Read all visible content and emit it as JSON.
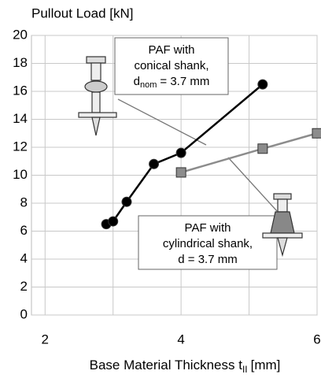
{
  "chart_data": {
    "type": "line",
    "title": "Pullout Load [kN]",
    "x_label": {
      "main": "Base Material Thickness t",
      "sub": "II",
      "unit": "[mm]"
    },
    "xlim": [
      1.8,
      6
    ],
    "xticks": [
      2,
      4,
      6
    ],
    "x_minor_grid": [
      3,
      5
    ],
    "ylim": [
      0,
      20
    ],
    "yticks": [
      0,
      2,
      4,
      6,
      8,
      10,
      12,
      14,
      16,
      18,
      20
    ],
    "grid": true,
    "series": [
      {
        "color": "#000000",
        "marker": "circle",
        "x": [
          2.9,
          3.0,
          3.2,
          3.6,
          4.0,
          5.2
        ],
        "values": [
          6.5,
          6.7,
          8.1,
          10.8,
          11.6,
          16.5
        ]
      },
      {
        "color": "#8c8c8c",
        "marker": "square",
        "x": [
          4.0,
          5.2,
          6.0
        ],
        "values": [
          10.2,
          11.9,
          13.0
        ]
      }
    ],
    "annotations": [
      {
        "lines": [
          "PAF with",
          "conical shank,"
        ],
        "last": {
          "main": "d",
          "sub": "nom",
          "rest": "= 3.7 mm"
        }
      },
      {
        "lines": [
          "PAF with",
          "cylindrical shank,",
          "d = 3.7 mm"
        ]
      }
    ]
  }
}
